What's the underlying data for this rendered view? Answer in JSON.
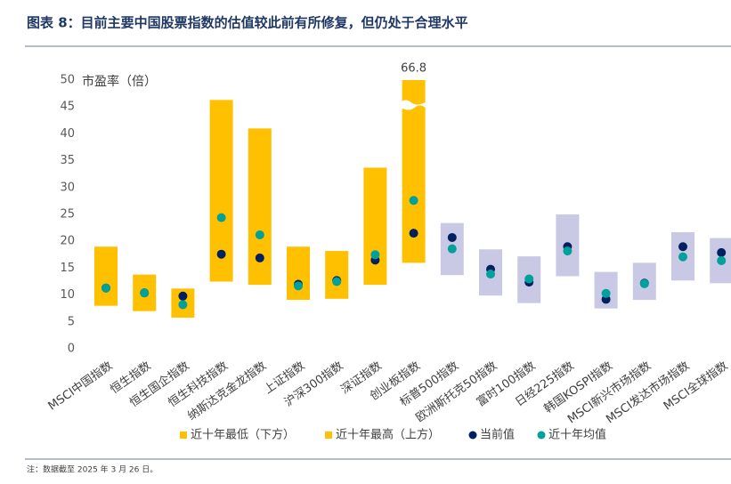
{
  "chart_data": {
    "type": "range",
    "title": "图表 8：目前主要中国股票指数的估值较此前有所修复，但仍处于合理水平",
    "y_label": "市盈率（倍）",
    "note": "注：数据截至 2025 年 3 月 26 日。",
    "categories": [
      "MSCI中国指数",
      "恒生指数",
      "恒生国企指数",
      "恒生科技指数",
      "纳斯达克金龙指数",
      "上证指数",
      "沪深300指数",
      "深证指数",
      "创业板指数",
      "标普500指数",
      "欧洲斯托克50指数",
      "富时100指数",
      "日经225指数",
      "韩国KOSPI指数",
      "MSCI新兴市场指数",
      "MSCI发达市场指数",
      "MSCI全球指数"
    ],
    "bar_colors": [
      "#ffc000",
      "#ffc000",
      "#ffc000",
      "#ffc000",
      "#ffc000",
      "#ffc000",
      "#ffc000",
      "#ffc000",
      "#ffc000",
      "#c9c9e6",
      "#c9c9e6",
      "#c9c9e6",
      "#c9c9e6",
      "#c9c9e6",
      "#c9c9e6",
      "#c9c9e6",
      "#c9c9e6"
    ],
    "series": [
      {
        "name": "近十年最低（下方）",
        "color": "#ffc000",
        "values": [
          8,
          7,
          5.8,
          12.5,
          11.9,
          9.1,
          9.3,
          11.9,
          16,
          13.7,
          9.9,
          8.5,
          13.5,
          7.5,
          9.1,
          12.7,
          12.2
        ]
      },
      {
        "name": "近十年最高（上方）",
        "color": "#ffc000",
        "values": [
          19,
          13.8,
          11.2,
          46.3,
          41,
          19,
          18.2,
          33.7,
          66.8,
          23.4,
          18.5,
          17.2,
          25,
          14.3,
          16,
          21.7,
          20.6
        ]
      },
      {
        "name": "当前值",
        "color": "#002060",
        "values": [
          11.3,
          10.4,
          9.8,
          17.6,
          16.9,
          12,
          12.7,
          16.5,
          21.5,
          20.7,
          14.8,
          12.4,
          19,
          9.2,
          12.2,
          19,
          17.9
        ]
      },
      {
        "name": "近十年均值",
        "color": "#00a19a",
        "values": [
          11.3,
          10.4,
          8.2,
          24.4,
          21.2,
          11.7,
          12.5,
          17.5,
          27.6,
          18.6,
          13.9,
          13,
          18.2,
          10.3,
          12.1,
          17.1,
          16.4
        ]
      }
    ],
    "labeled_points": [
      {
        "series": 1,
        "index": 8
      }
    ],
    "ylim": [
      0,
      50
    ],
    "yticks": [
      0,
      5,
      10,
      15,
      20,
      25,
      30,
      35,
      40,
      45,
      50
    ],
    "grid": false
  }
}
